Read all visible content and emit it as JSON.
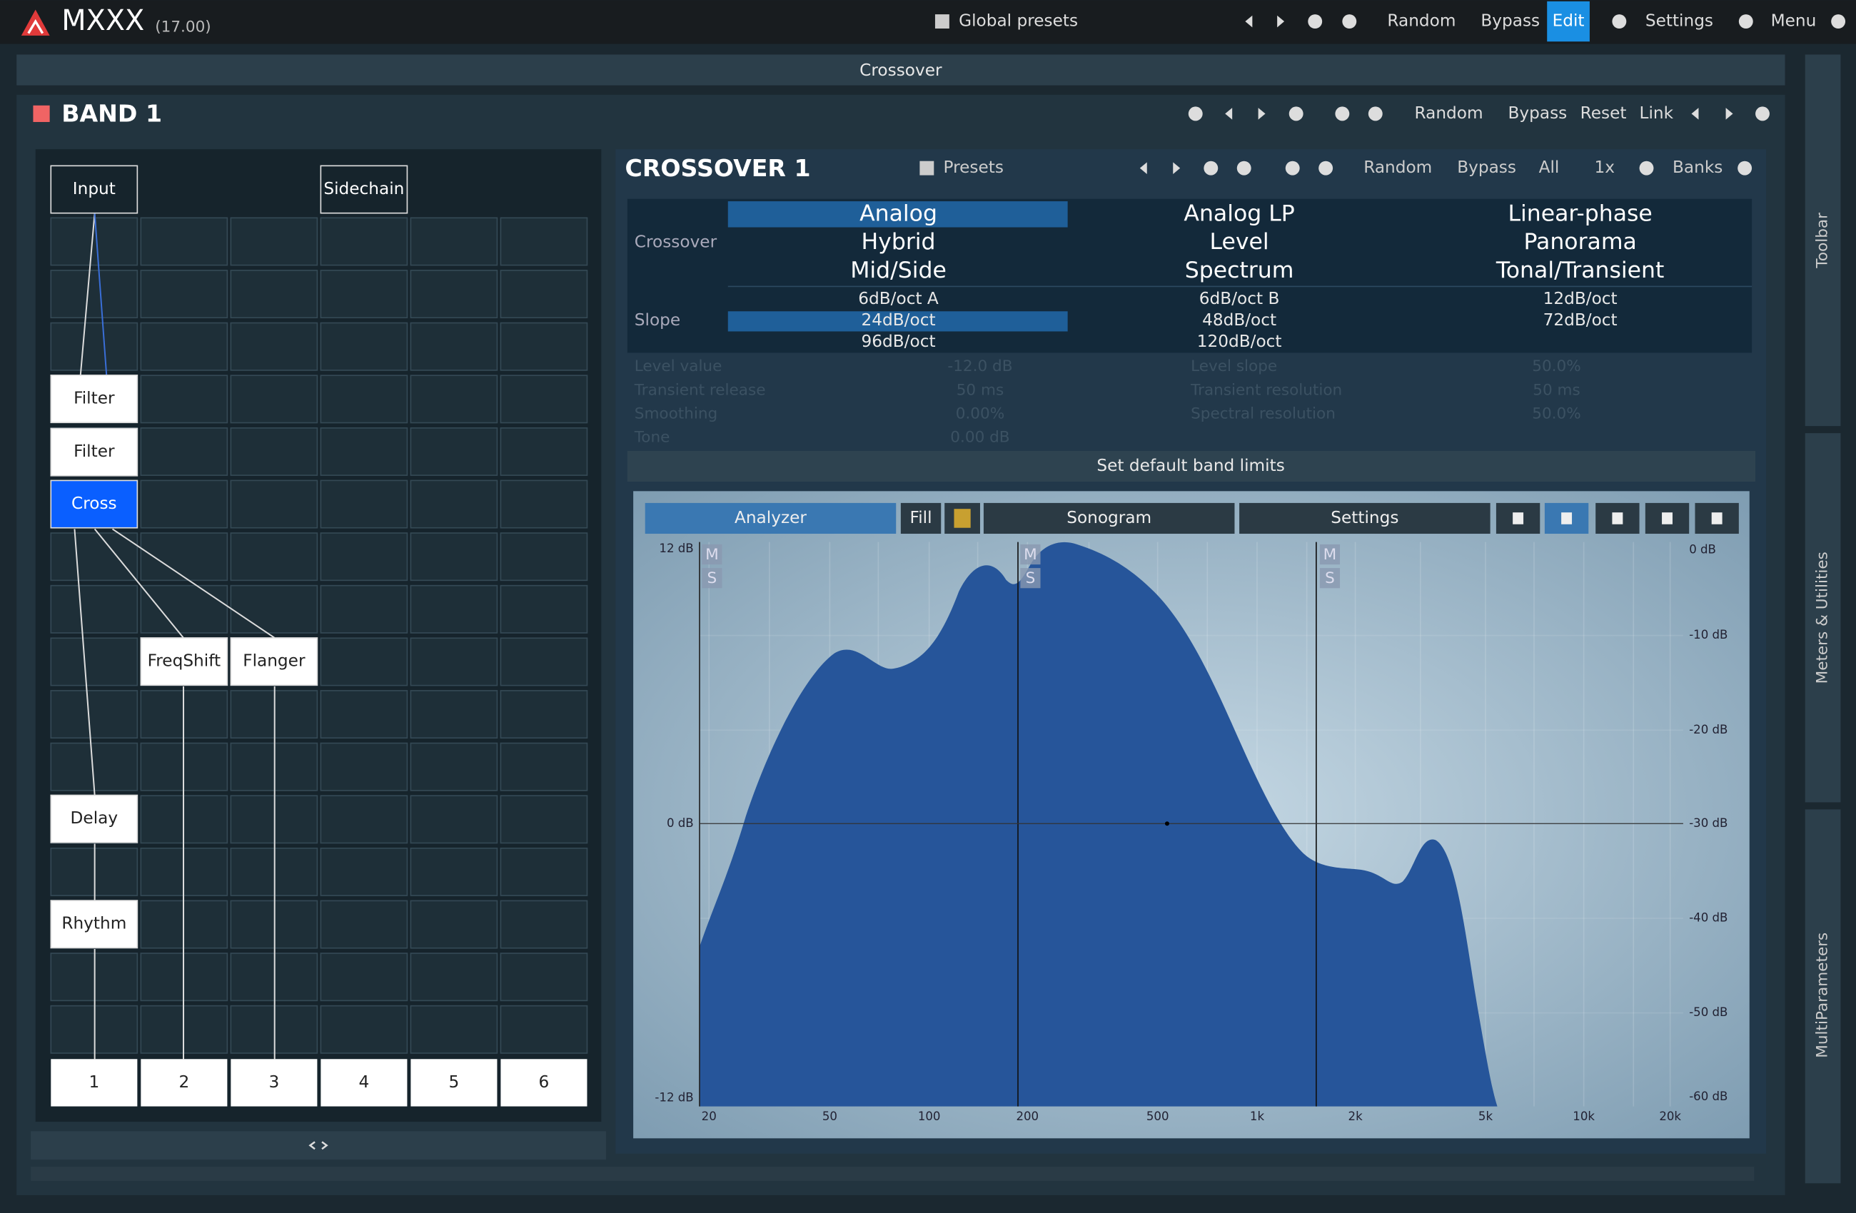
{
  "app": {
    "name": "MXXX",
    "version": "(17.00)"
  },
  "toolbar": {
    "global_presets": "Global presets",
    "random": "Random",
    "bypass": "Bypass",
    "edit": "Edit",
    "settings": "Settings",
    "menu": "Menu"
  },
  "crossover_header": "Crossover",
  "band": {
    "title": "BAND 1",
    "buttons": [
      "Random",
      "Bypass",
      "Reset",
      "Link"
    ]
  },
  "routing": {
    "nodes": [
      {
        "label": "Input"
      },
      {
        "label": "Sidechain"
      },
      {
        "label": "Filter"
      },
      {
        "label": "Filter"
      },
      {
        "label": "Cross"
      },
      {
        "label": "FreqShift"
      },
      {
        "label": "Flanger"
      },
      {
        "label": "Delay"
      },
      {
        "label": "Rhythm"
      }
    ],
    "outputs": [
      "1",
      "2",
      "3",
      "4",
      "5",
      "6"
    ]
  },
  "module": {
    "title": "CROSSOVER 1",
    "presets": "Presets",
    "buttons": [
      "Random",
      "Bypass",
      "All",
      "1x",
      "Banks"
    ],
    "crossover_label": "Crossover",
    "crossover_options": [
      "Analog",
      "Hybrid",
      "Mid/Side",
      "Analog LP",
      "Level",
      "Spectrum",
      "Linear-phase",
      "Panorama",
      "Tonal/Transient"
    ],
    "slope_label": "Slope",
    "slope_options": [
      "6dB/oct A",
      "24dB/oct",
      "96dB/oct",
      "6dB/oct B",
      "48dB/oct",
      "120dB/oct",
      "12dB/oct",
      "72dB/oct"
    ],
    "faded_params": [
      {
        "label": "Level value",
        "value": "-12.0 dB"
      },
      {
        "label": "Transient release",
        "value": "50 ms"
      },
      {
        "label": "Smoothing",
        "value": "0.00%"
      },
      {
        "label": "Tone",
        "value": "0.00 dB"
      },
      {
        "label": "Level slope",
        "value": "50.0%"
      },
      {
        "label": "Transient resolution",
        "value": "50 ms"
      },
      {
        "label": "Spectral resolution",
        "value": "50.0%"
      }
    ],
    "default_button": "Set default band limits"
  },
  "analyzer": {
    "buttons": [
      "Analyzer",
      "Fill",
      "Sonogram",
      "Settings"
    ],
    "markers": [
      "M",
      "S"
    ],
    "x_labels": [
      "20",
      "50",
      "100",
      "200",
      "500",
      "1k",
      "2k",
      "5k",
      "10k",
      "20k"
    ],
    "left_labels": [
      "12 dB",
      "0 dB",
      "-12 dB"
    ],
    "right_labels": [
      "0 dB",
      "-10 dB",
      "-20 dB",
      "-30 dB",
      "-40 dB",
      "-50 dB",
      "-60 dB"
    ]
  },
  "side_tabs": [
    "Toolbar",
    "Meters & Utilities",
    "MultiParameters"
  ]
}
